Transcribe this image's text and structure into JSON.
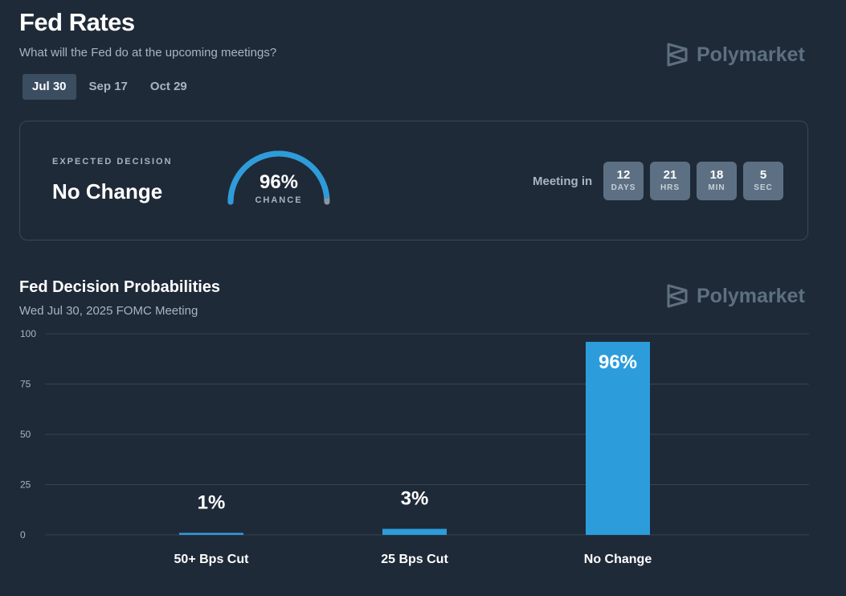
{
  "header": {
    "title": "Fed Rates",
    "subtitle": "What will the Fed do at the upcoming meetings?",
    "brand": "Polymarket"
  },
  "tabs": [
    {
      "label": "Jul 30",
      "active": true
    },
    {
      "label": "Sep 17",
      "active": false
    },
    {
      "label": "Oct 29",
      "active": false
    }
  ],
  "summary": {
    "expected_label": "EXPECTED DECISION",
    "expected_value": "No Change",
    "chance_pct": "96%",
    "chance_fraction": 0.96,
    "chance_label": "CHANCE",
    "meeting_label": "Meeting in",
    "countdown": [
      {
        "value": "12",
        "unit": "DAYS"
      },
      {
        "value": "21",
        "unit": "HRS"
      },
      {
        "value": "18",
        "unit": "MIN"
      },
      {
        "value": "5",
        "unit": "SEC"
      }
    ]
  },
  "colors": {
    "accent": "#2d9cdb",
    "background": "#1f2a38",
    "muted_text": "#aab4c0",
    "gauge_track": "#8a96a3",
    "gridline": "#37434f"
  },
  "chart_section": {
    "title": "Fed Decision Probabilities",
    "subtitle": "Wed Jul 30, 2025 FOMC Meeting",
    "brand": "Polymarket"
  },
  "chart_data": {
    "type": "bar",
    "categories": [
      "50+ Bps Cut",
      "25 Bps Cut",
      "No Change"
    ],
    "values": [
      1,
      3,
      96
    ],
    "value_labels": [
      "1%",
      "3%",
      "96%"
    ],
    "title": "",
    "xlabel": "",
    "ylabel": "",
    "ylim": [
      0,
      100
    ],
    "yticks": [
      0,
      25,
      50,
      75,
      100
    ],
    "grid": true,
    "legend": "none"
  }
}
